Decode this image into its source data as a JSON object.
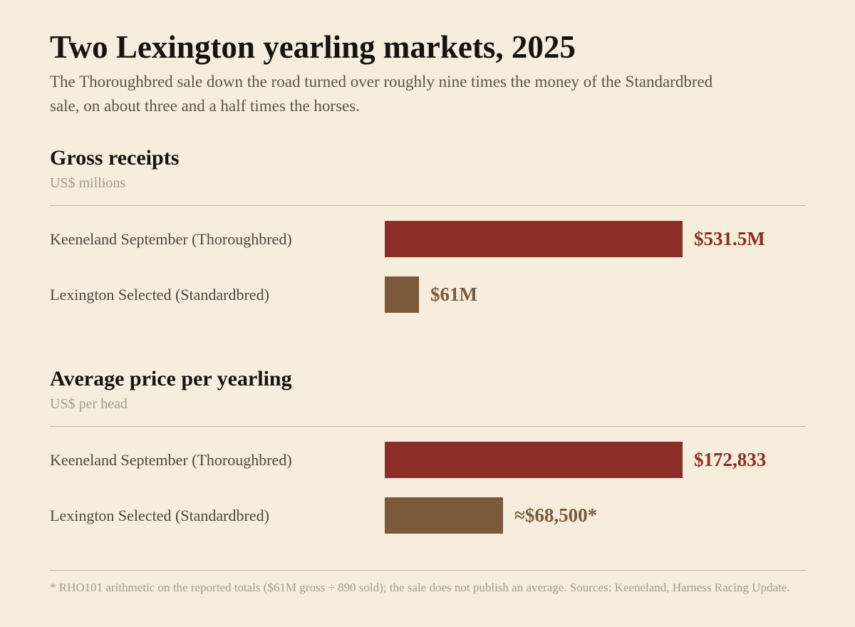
{
  "title": "Two Lexington yearling markets, 2025",
  "subtitle": "The Thoroughbred sale down the road turned over roughly nine times the money of the Standardbred sale, on about three and a half times the horses.",
  "colors": {
    "background": "#f6eddc",
    "thoroughbred": "#8b2e28",
    "standardbred": "#7a5a3a"
  },
  "chart_data": [
    {
      "type": "bar",
      "orientation": "horizontal",
      "title": "Gross receipts",
      "unit_label": "US$ millions",
      "categories": [
        "Keeneland September (Thoroughbred)",
        "Lexington Selected (Standardbred)"
      ],
      "values": [
        531.5,
        61
      ],
      "value_labels": [
        "$531.5M",
        "$61M"
      ],
      "xlim": [
        0,
        531.5
      ]
    },
    {
      "type": "bar",
      "orientation": "horizontal",
      "title": "Average price per yearling",
      "unit_label": "US$ per head",
      "categories": [
        "Keeneland September (Thoroughbred)",
        "Lexington Selected (Standardbred)"
      ],
      "values": [
        172833,
        68500
      ],
      "value_labels": [
        "$172,833",
        "≈$68,500*"
      ],
      "xlim": [
        0,
        172833
      ]
    }
  ],
  "footnote": "* RHO101 arithmetic on the reported totals ($61M gross ÷ 890 sold); the sale does not publish an average. Sources: Keeneland, Harness Racing Update."
}
